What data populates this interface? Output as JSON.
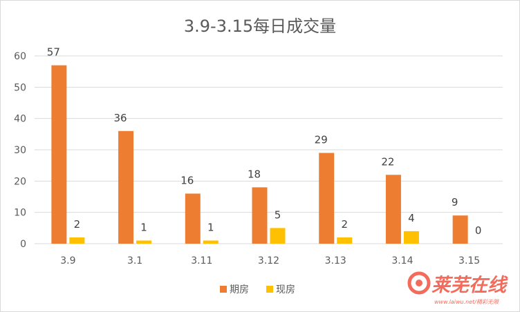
{
  "chart_data": {
    "type": "bar",
    "title": "3.9-3.15每日成交量",
    "categories": [
      "3.9",
      "3.1",
      "3.11",
      "3.12",
      "3.13",
      "3.14",
      "3.15"
    ],
    "series": [
      {
        "name": "期房",
        "values": [
          57,
          36,
          16,
          18,
          29,
          22,
          9
        ],
        "color": "#ed7d31"
      },
      {
        "name": "现房",
        "values": [
          2,
          1,
          1,
          5,
          2,
          4,
          0
        ],
        "color": "#ffc000"
      }
    ],
    "ylim": [
      0,
      60
    ],
    "yticks": [
      0,
      10,
      20,
      30,
      40,
      50,
      60
    ],
    "grid": true,
    "data_labels": true,
    "legend": "bottom"
  },
  "watermark": {
    "text": "莱芜在线",
    "url_text": "www.laiwu.net",
    "slogan": "精彩无限"
  }
}
